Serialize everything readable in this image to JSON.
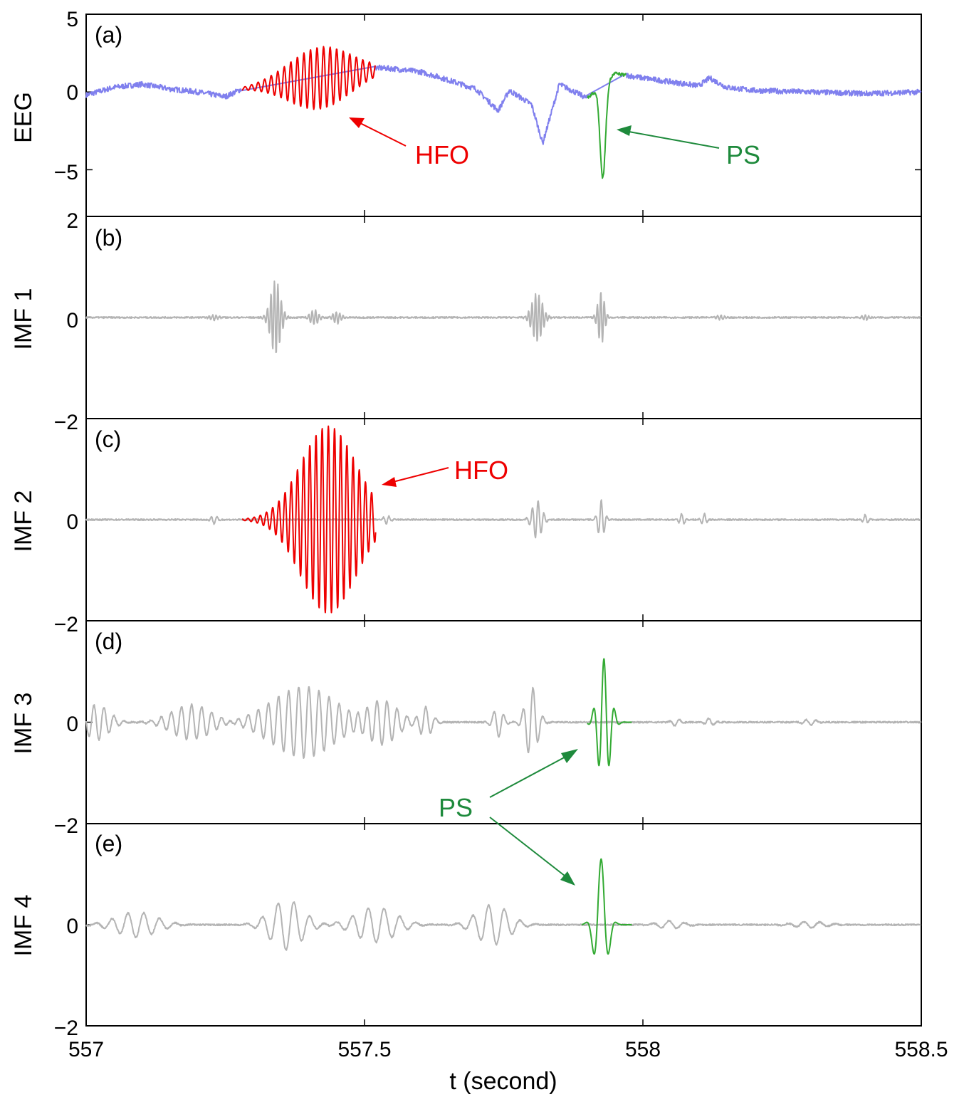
{
  "colors": {
    "eeg": "#8080ee",
    "imf": "#b4b4b4",
    "hfo": "#ee0000",
    "ps": "#1e8a3c",
    "ps_trace": "#33aa33",
    "axis": "#000000"
  },
  "figure": {
    "xlabel": "t (second)",
    "x_ticks": [
      "557",
      "557.5",
      "558",
      "558.5"
    ]
  },
  "chart_data": [
    {
      "type": "line",
      "panel": "(a)",
      "ylabel": "EEG",
      "xlim": [
        557,
        558.5
      ],
      "ylim": [
        -8,
        5
      ],
      "yticks": [
        5,
        0,
        -5
      ],
      "ytick_labels": [
        "5",
        "0",
        "−5"
      ],
      "series": [
        {
          "key": "eeg",
          "color_key": "eeg",
          "x": [
            557.0,
            557.05,
            557.1,
            557.15,
            557.2,
            557.25,
            557.28,
            557.5,
            557.55,
            557.6,
            557.63,
            557.7,
            557.74,
            557.76,
            557.8,
            557.82,
            557.85,
            557.9,
            557.95,
            558.0,
            558.1,
            558.12,
            558.15,
            558.2,
            558.3,
            558.4,
            558.5
          ],
          "y": [
            -0.2,
            0.3,
            0.5,
            0.2,
            0.0,
            -0.3,
            0.2,
            1.6,
            1.5,
            1.3,
            1.0,
            0.2,
            -1.2,
            0.1,
            -0.8,
            -3.3,
            0.5,
            -0.4,
            1.2,
            0.9,
            0.4,
            0.9,
            0.3,
            0.1,
            0.0,
            -0.1,
            0.0
          ]
        },
        {
          "key": "hfo",
          "color_key": "hfo",
          "x": [
            557.28,
            557.52
          ],
          "y": [
            0.0,
            1.0
          ]
        },
        {
          "key": "ps",
          "color_key": "ps_trace",
          "x": [
            557.9,
            557.97
          ],
          "y": [
            -0.4,
            1.1
          ]
        }
      ],
      "annotations": [
        {
          "text": "HFO",
          "color_key": "hfo"
        },
        {
          "text": "PS",
          "color_key": "ps"
        }
      ]
    },
    {
      "type": "line",
      "panel": "(b)",
      "ylabel": "IMF 1",
      "xlim": [
        557,
        558.5
      ],
      "ylim": [
        -2,
        2
      ],
      "yticks": [
        2,
        0,
        -2
      ],
      "ytick_labels": [
        "2",
        "0",
        "−2"
      ],
      "series": [
        {
          "key": "imf",
          "color_key": "imf",
          "bursts": [
            [
              557.23,
              557.01,
              0.05
            ],
            [
              557.34,
              557.012,
              0.75
            ],
            [
              557.41,
              557.01,
              0.15
            ],
            [
              557.45,
              557.01,
              0.12
            ],
            [
              557.81,
              557.013,
              0.48
            ],
            [
              557.925,
              557.008,
              0.52
            ],
            [
              558.14,
              557.008,
              0.05
            ],
            [
              558.4,
              557.008,
              0.05
            ]
          ]
        }
      ]
    },
    {
      "type": "line",
      "panel": "(c)",
      "ylabel": "IMF 2",
      "xlim": [
        557,
        558.5
      ],
      "ylim": [
        -2,
        2
      ],
      "yticks": [
        -2,
        0
      ],
      "ytick_labels": [
        "−2",
        "0"
      ],
      "series": [
        {
          "key": "imf",
          "color_key": "imf",
          "bursts": [
            [
              557.23,
              557.008,
              0.08
            ],
            [
              557.54,
              557.008,
              0.08
            ],
            [
              557.81,
              557.012,
              0.38
            ],
            [
              557.925,
              557.008,
              0.38
            ],
            [
              558.07,
              557.006,
              0.12
            ],
            [
              558.11,
              557.006,
              0.12
            ],
            [
              558.4,
              557.006,
              0.1
            ]
          ]
        },
        {
          "key": "hfo",
          "color_key": "hfo",
          "x": [
            557.28,
            557.52
          ],
          "amp": 1.85,
          "center": 557.435
        }
      ],
      "annotations": [
        {
          "text": "HFO",
          "color_key": "hfo"
        }
      ]
    },
    {
      "type": "line",
      "panel": "(d)",
      "ylabel": "IMF 3",
      "xlim": [
        557,
        558.5
      ],
      "ylim": [
        -2,
        2
      ],
      "yticks": [
        -2,
        0
      ],
      "ytick_labels": [
        "−2",
        "0"
      ],
      "series": [
        {
          "key": "imf",
          "color_key": "imf",
          "bursts": [
            [
              557.02,
              557.03,
              0.35
            ],
            [
              557.19,
              557.05,
              0.35
            ],
            [
              557.39,
              557.08,
              0.7
            ],
            [
              557.53,
              557.04,
              0.45
            ],
            [
              557.61,
              557.015,
              0.3
            ],
            [
              557.74,
              557.012,
              0.3
            ],
            [
              557.8,
              557.015,
              0.7
            ],
            [
              558.06,
              557.01,
              0.08
            ],
            [
              558.12,
              557.01,
              0.08
            ],
            [
              558.3,
              557.015,
              0.06
            ]
          ]
        },
        {
          "key": "ps",
          "color_key": "ps_trace",
          "x": [
            557.9,
            557.98
          ],
          "amp": 1.25,
          "center": 557.93
        }
      ],
      "annotations": [
        {
          "text": "PS",
          "color_key": "ps"
        }
      ]
    },
    {
      "type": "line",
      "panel": "(e)",
      "ylabel": "IMF 4",
      "xlim": [
        557,
        558.5
      ],
      "ylim": [
        -2,
        2
      ],
      "yticks": [
        -2,
        0
      ],
      "ytick_labels": [
        "−2",
        "0"
      ],
      "series": [
        {
          "key": "imf",
          "color_key": "imf",
          "bursts": [
            [
              557.09,
              557.05,
              0.25
            ],
            [
              557.36,
              557.04,
              0.5
            ],
            [
              557.52,
              557.05,
              0.35
            ],
            [
              557.73,
              557.04,
              0.4
            ],
            [
              558.05,
              557.03,
              0.08
            ],
            [
              558.3,
              557.04,
              0.06
            ]
          ]
        },
        {
          "key": "ps",
          "color_key": "ps_trace",
          "x": [
            557.89,
            557.98
          ],
          "amp": 1.3,
          "center": 557.925
        }
      ]
    }
  ]
}
